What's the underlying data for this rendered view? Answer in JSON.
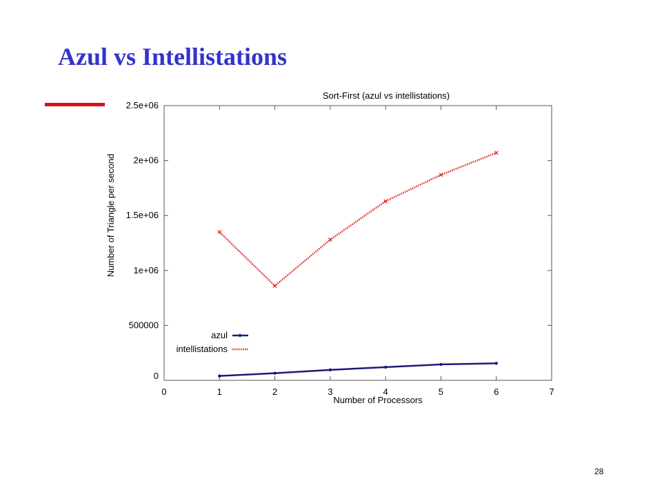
{
  "slide": {
    "title": "Azul vs Intellistations",
    "page_number": "28"
  },
  "colors": {
    "title": "#3333cc",
    "accent_bar": "#e00c17",
    "azul": "#1a1a7a",
    "intellistations": "#e01a1a"
  },
  "chart_data": {
    "type": "line",
    "title": "Sort-First (azul vs intellistations)",
    "xlabel": "Number of Processors",
    "ylabel": "Number of Triangle per second",
    "xlim": [
      0,
      7
    ],
    "ylim": [
      0,
      2500000
    ],
    "x_ticks": [
      {
        "value": 0,
        "label": "0"
      },
      {
        "value": 1,
        "label": "1"
      },
      {
        "value": 2,
        "label": "2"
      },
      {
        "value": 3,
        "label": "3"
      },
      {
        "value": 4,
        "label": "4"
      },
      {
        "value": 5,
        "label": "5"
      },
      {
        "value": 6,
        "label": "6"
      },
      {
        "value": 7,
        "label": "7"
      }
    ],
    "y_ticks": [
      {
        "value": 0,
        "label": "0"
      },
      {
        "value": 500000,
        "label": "500000"
      },
      {
        "value": 1000000,
        "label": "1e+06"
      },
      {
        "value": 1500000,
        "label": "1.5e+06"
      },
      {
        "value": 2000000,
        "label": "2e+06"
      },
      {
        "value": 2500000,
        "label": "2.5e+06"
      }
    ],
    "grid": false,
    "legend_position": "bottom-left",
    "x": [
      1,
      2,
      3,
      4,
      5,
      6
    ],
    "series": [
      {
        "name": "azul",
        "values": [
          40000,
          65000,
          95000,
          120000,
          145000,
          155000
        ],
        "style": "solid",
        "color": "#1a1a7a"
      },
      {
        "name": "intellistations",
        "values": [
          1350000,
          860000,
          1280000,
          1630000,
          1870000,
          2070000
        ],
        "style": "dotted",
        "color": "#e01a1a"
      }
    ]
  }
}
